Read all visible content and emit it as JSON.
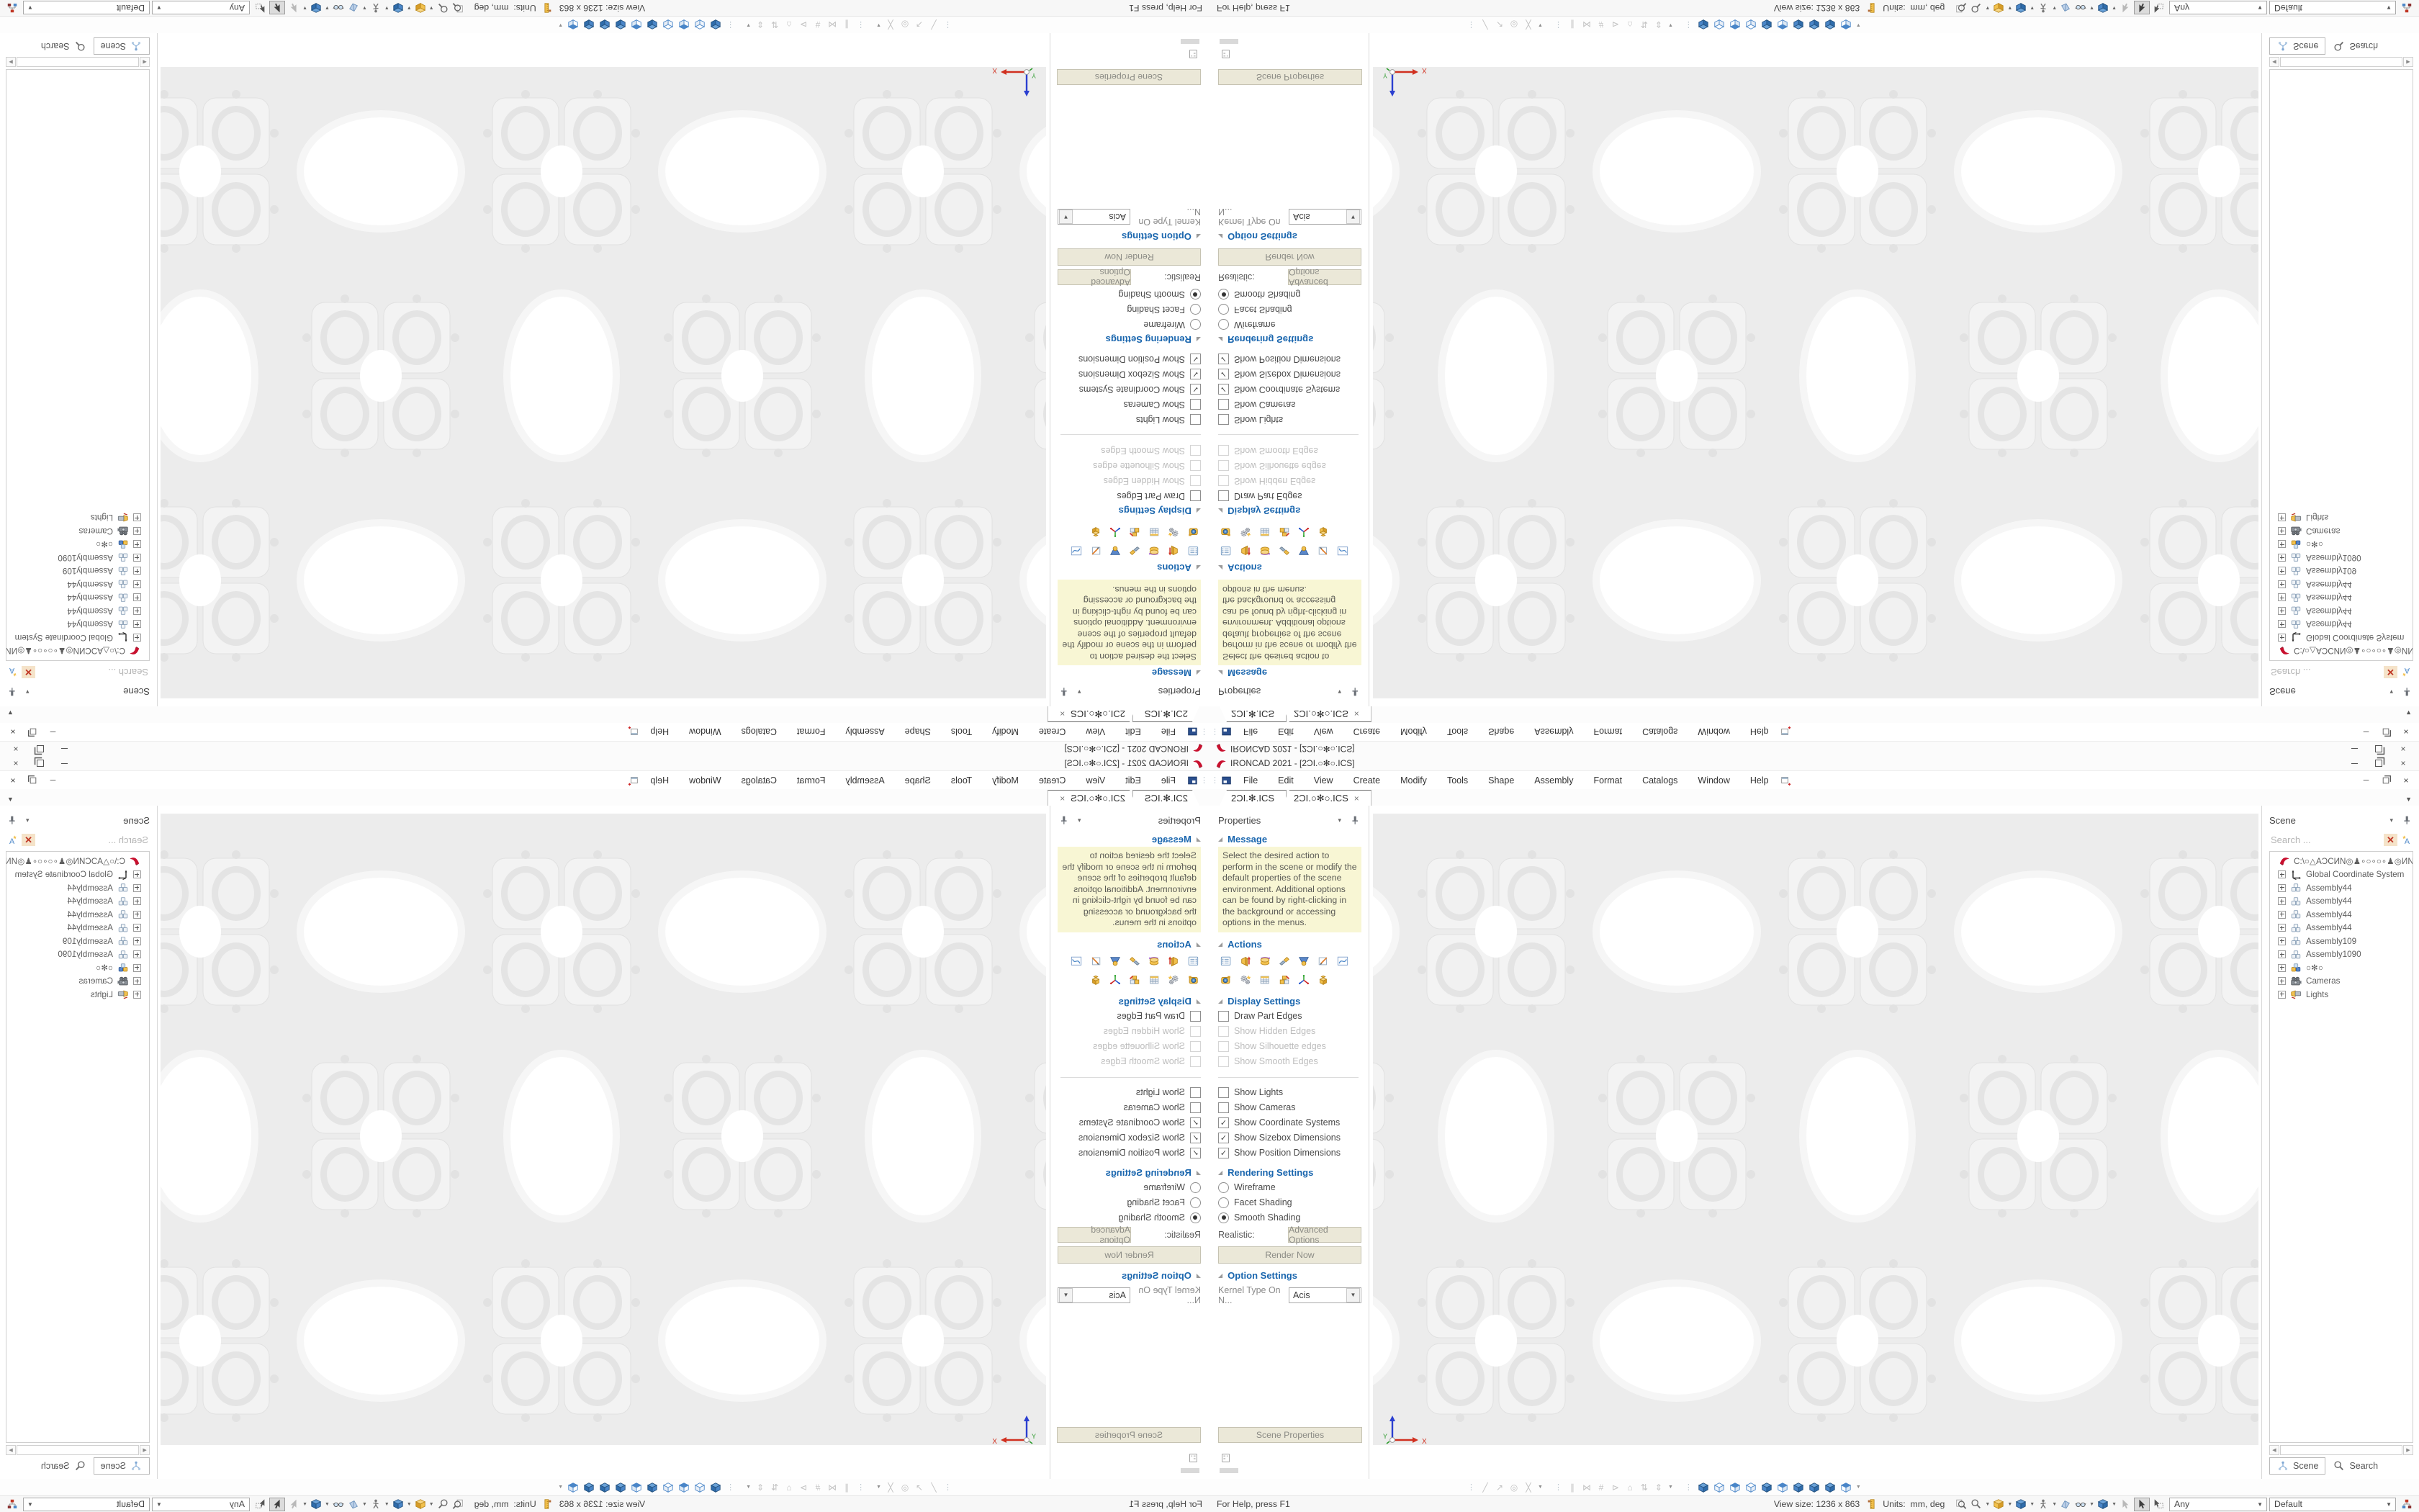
{
  "app": {
    "title": "IRONCAD 2021 - [2ƆI.○✻○.ICS]",
    "menu": [
      "File",
      "Edit",
      "View",
      "Create",
      "Modify",
      "Tools",
      "Shape",
      "Assembly",
      "Format",
      "Catalogs",
      "Window",
      "Help"
    ],
    "doc_tabs": [
      {
        "label": "2ƆI.✻.ICS",
        "active": false
      },
      {
        "label": "2ƆI.○✻○.ICS",
        "active": true,
        "close": "×"
      }
    ]
  },
  "properties_panel": {
    "title": "Properties",
    "message": {
      "label": "Message",
      "text": "Select the desired action to perform in the scene or modify the default properties of the scene environment. Additional options can be found by right-clicking in the background or accessing options in the menus."
    },
    "actions": {
      "label": "Actions",
      "row1": [
        "action-list",
        "action-extrude",
        "action-revolve",
        "action-sweep",
        "action-mold",
        "action-edit",
        "action-curve"
      ],
      "row2": [
        "action-render-box",
        "action-gears",
        "action-table",
        "action-blocks",
        "action-triad",
        "action-stack"
      ]
    },
    "display": {
      "label": "Display Settings",
      "items": [
        {
          "label": "Draw Part Edges",
          "checked": false,
          "enabled": true
        },
        {
          "label": "Show Hidden Edges",
          "checked": false,
          "enabled": false
        },
        {
          "label": "Show Silhouette edges",
          "checked": false,
          "enabled": false
        },
        {
          "label": "Show Smooth Edges",
          "checked": false,
          "enabled": false
        },
        {
          "divider": true
        },
        {
          "label": "Show Lights",
          "checked": false,
          "enabled": true
        },
        {
          "label": "Show Cameras",
          "checked": false,
          "enabled": true
        },
        {
          "label": "Show Coordinate Systems",
          "checked": true,
          "enabled": true
        },
        {
          "label": "Show Sizebox Dimensions",
          "checked": true,
          "enabled": true
        },
        {
          "label": "Show Position Dimensions",
          "checked": true,
          "enabled": true
        }
      ]
    },
    "rendering": {
      "label": "Rendering Settings",
      "radios": [
        {
          "label": "Wireframe",
          "selected": false
        },
        {
          "label": "Facet Shading",
          "selected": false
        },
        {
          "label": "Smooth Shading",
          "selected": true
        }
      ],
      "realistic_label": "Realistic:",
      "advanced_button": "Advanced Options",
      "render_button": "Render Now"
    },
    "options": {
      "label": "Option Settings",
      "kernel_label": "Kernel Type On N...",
      "kernel_value": "Acis"
    },
    "footer_button": "Scene Properties"
  },
  "scene_panel": {
    "title": "Scene",
    "search_placeholder": "Search ...",
    "tree": [
      {
        "label": "C:\\○△AƆCИN◎♟∘○∘○∘♟◎ИN",
        "icon": "ic-logo",
        "root": true
      },
      {
        "label": "Global Coordinate System",
        "icon": "axis-gcs"
      },
      {
        "label": "Assembly44",
        "icon": "assembly"
      },
      {
        "label": "Assembly44",
        "icon": "assembly"
      },
      {
        "label": "Assembly44",
        "icon": "assembly"
      },
      {
        "label": "Assembly44",
        "icon": "assembly"
      },
      {
        "label": "Assembly109",
        "icon": "assembly"
      },
      {
        "label": "Assembly1090",
        "icon": "assembly"
      },
      {
        "label": "○✻○",
        "icon": "assembly-color"
      },
      {
        "label": "Cameras",
        "icon": "camera"
      },
      {
        "label": "Lights",
        "icon": "light"
      }
    ],
    "tabs": [
      {
        "label": "Scene",
        "icon": "tree-icon",
        "active": true
      },
      {
        "label": "Search",
        "icon": "magnifier",
        "active": false
      }
    ]
  },
  "toolbar_bottom": {
    "glyph_groups": [
      [
        "╱",
        "↗",
        "◎",
        "╳"
      ],
      [
        "∥",
        "⋈",
        "#",
        "⊳",
        "⌂",
        "⇅",
        "⇕"
      ]
    ],
    "cube_group": [
      "cube-solid",
      "cube-outline",
      "cube-half",
      "cube-outline",
      "cube-solid",
      "cube-half",
      "cube-solid",
      "cube-solid",
      "cube-solid",
      "cube-half"
    ]
  },
  "status_bar": {
    "help": "For Help, press F1",
    "view_size_label": "View size:",
    "view_size_value": "1236 x 863",
    "units_label": "Units:",
    "units_value": "mm, deg",
    "icons": [
      "magnifier-page",
      "magnifier",
      "cube-yellow",
      "cube-solid",
      "walk",
      "facet",
      "glasses",
      "cube-solid",
      "arrow-gray",
      "arrow-active",
      "arrow-box"
    ],
    "combo_any": "Any",
    "combo_default": "Default"
  },
  "viewport": {
    "ucs_x": "X",
    "ucs_y": "Y"
  },
  "colors": {
    "accent_blue": "#1a66ae",
    "message_bg": "#f8f6d4",
    "button_beige": "#ebe8d8",
    "cube_blue": "#4a86c8",
    "logo_red": "#c8102e",
    "clear_red": "#c03726"
  }
}
